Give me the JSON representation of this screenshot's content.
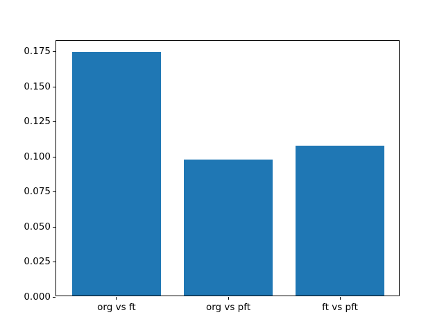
{
  "figure": {
    "background_color": "#ffffff",
    "spine_color": "#000000"
  },
  "chart_data": {
    "type": "bar",
    "title": "",
    "xlabel": "",
    "ylabel": "",
    "categories": [
      "org vs ft",
      "org vs pft",
      "ft vs pft"
    ],
    "values": [
      0.174,
      0.097,
      0.107
    ],
    "bar_color": "#1f77b4",
    "bar_width_units": 0.8,
    "xlim": [
      -0.54,
      2.54
    ],
    "ylim": [
      0,
      0.1827
    ],
    "yticks": [
      "0.000",
      "0.025",
      "0.050",
      "0.075",
      "0.100",
      "0.125",
      "0.150",
      "0.175"
    ],
    "grid": false,
    "legend": null
  }
}
